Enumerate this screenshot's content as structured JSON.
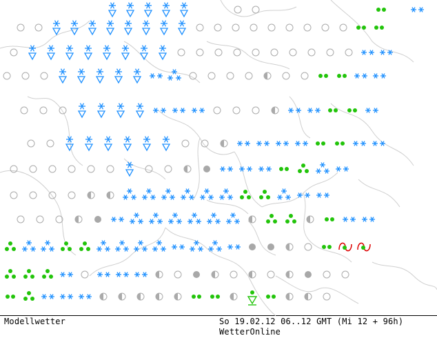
{
  "map": {
    "colors": {
      "snow": "#1e90ff",
      "rain": "#22c40a",
      "overcast": "#a8a8a8",
      "outline": "#aaaaaa",
      "border": "#cfcfcf",
      "freezing_rain": "#dd0000"
    },
    "legend_icons": [
      "clear-circle",
      "half-cloud-circle",
      "overcast-dot",
      "snow-shower",
      "snow-asterisks",
      "rain-dots",
      "rain-shower",
      "freezing-rain"
    ]
  },
  "caption": {
    "left": "Modellwetter",
    "right": "So 19.02.12 06..12 GMT (Mi 12 + 96h)",
    "brand": "WetterOnline"
  }
}
